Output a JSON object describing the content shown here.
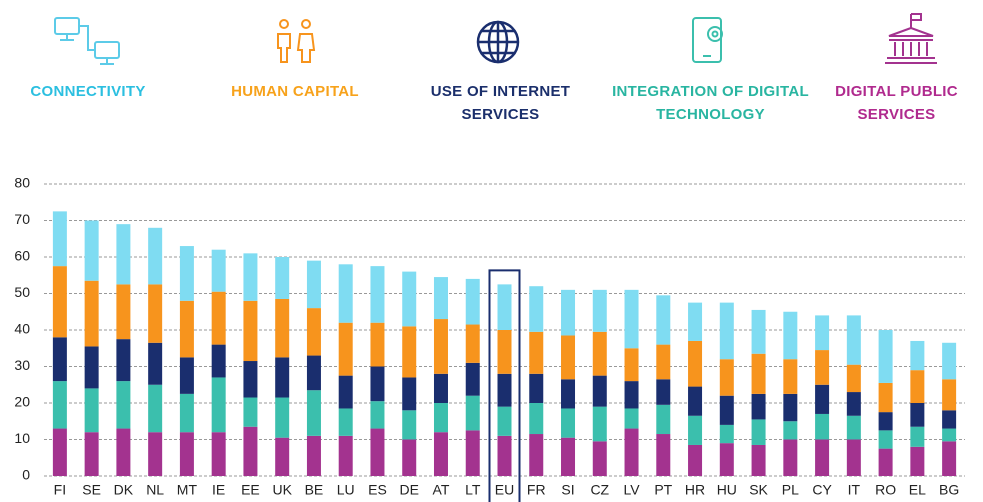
{
  "chart_data": {
    "type": "stacked_bar",
    "categories": [
      "FI",
      "SE",
      "DK",
      "NL",
      "MT",
      "IE",
      "EE",
      "UK",
      "BE",
      "LU",
      "ES",
      "DE",
      "AT",
      "LT",
      "EU",
      "FR",
      "SI",
      "CZ",
      "LV",
      "PT",
      "HR",
      "HU",
      "SK",
      "PL",
      "CY",
      "IT",
      "RO",
      "EL",
      "BG"
    ],
    "series": [
      {
        "name": "CONNECTIVITY",
        "color": "#7fdcf2",
        "text_color": "#2bbfe0",
        "values": [
          15,
          16.5,
          16.5,
          15.5,
          15,
          11.5,
          13,
          11.5,
          13,
          16,
          15.5,
          15,
          11.5,
          12.5,
          12.5,
          12.5,
          12.5,
          11.5,
          16,
          13.5,
          10.5,
          15.5,
          12,
          13,
          9.5,
          13.5,
          14.5,
          8,
          10
        ]
      },
      {
        "name": "HUMAN CAPITAL",
        "color": "#f7941d",
        "text_color": "#f7a21b",
        "values": [
          19.5,
          18,
          15,
          16,
          15.5,
          14.5,
          16.5,
          16,
          13,
          14.5,
          12,
          14,
          15,
          10.5,
          12,
          11.5,
          12,
          12,
          9,
          9.5,
          12.5,
          10,
          11,
          9.5,
          9.5,
          7.5,
          8,
          9,
          8.5
        ]
      },
      {
        "name": "USE OF INTERNET SERVICES",
        "color": "#1a2e6e",
        "text_color": "#1b2f6b",
        "values": [
          12,
          11.5,
          11.5,
          11.5,
          10,
          9,
          10,
          11,
          9.5,
          9,
          9.5,
          9,
          8,
          9,
          9,
          8,
          8,
          8.5,
          7.5,
          7,
          8,
          8,
          7,
          7.5,
          8,
          6.5,
          5,
          6.5,
          5
        ]
      },
      {
        "name": "INTEGRATION OF DIGITAL TECHNOLOGY",
        "color": "#3bbfad",
        "text_color": "#29b5a1",
        "values": [
          13,
          12,
          13,
          13,
          10.5,
          15,
          8,
          11,
          12.5,
          7.5,
          7.5,
          8,
          8,
          9.5,
          8,
          8.5,
          8,
          9.5,
          5.5,
          8,
          8,
          5,
          7,
          5,
          7,
          6.5,
          5,
          5.5,
          3.5
        ]
      },
      {
        "name": "DIGITAL PUBLIC SERVICES",
        "color": "#a3338f",
        "text_color": "#b02a8e",
        "values": [
          13,
          12,
          13,
          12,
          12,
          12,
          13.5,
          10.5,
          11,
          11,
          13,
          10,
          12,
          12.5,
          11,
          11.5,
          10.5,
          9.5,
          13,
          11.5,
          8.5,
          9,
          8.5,
          10,
          10,
          10,
          7.5,
          8,
          9.5
        ]
      }
    ],
    "ylim": [
      0,
      80
    ],
    "yticks": [
      0,
      10,
      20,
      30,
      40,
      50,
      60,
      70,
      80
    ],
    "grid": true,
    "highlight": "EU"
  }
}
